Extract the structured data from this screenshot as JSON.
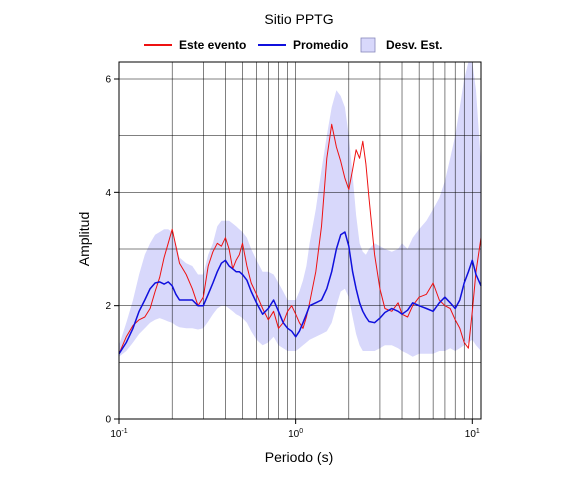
{
  "chart_data": {
    "type": "line",
    "title": "Sitio PPTG",
    "xlabel": "Periodo (s)",
    "ylabel": "Amplitud",
    "xscale": "log",
    "xlim": [
      0.1,
      11.2
    ],
    "ylim": [
      0,
      6.3
    ],
    "grid": true,
    "legend_position": "top",
    "x_tick_values": [
      0.1,
      1,
      10
    ],
    "x_ticks": [
      {
        "base": "10",
        "exp": "-1"
      },
      {
        "base": "10",
        "exp": "0"
      },
      {
        "base": "10",
        "exp": "1"
      }
    ],
    "y_ticks": [
      "0",
      "2",
      "4",
      "6"
    ],
    "legend": [
      "Este evento",
      "Promedio",
      "Desv. Est."
    ],
    "colors": {
      "event": "#ee1111",
      "mean": "#1010dd",
      "band": "#d8d8fb"
    },
    "x": [
      0.1,
      0.11,
      0.12,
      0.13,
      0.14,
      0.15,
      0.16,
      0.17,
      0.18,
      0.19,
      0.2,
      0.21,
      0.22,
      0.24,
      0.26,
      0.28,
      0.3,
      0.32,
      0.34,
      0.36,
      0.38,
      0.4,
      0.42,
      0.44,
      0.46,
      0.48,
      0.5,
      0.53,
      0.56,
      0.6,
      0.65,
      0.7,
      0.75,
      0.8,
      0.85,
      0.9,
      0.95,
      1.0,
      1.05,
      1.1,
      1.15,
      1.2,
      1.3,
      1.4,
      1.5,
      1.6,
      1.7,
      1.8,
      1.9,
      2.0,
      2.1,
      2.2,
      2.3,
      2.4,
      2.5,
      2.6,
      2.8,
      3.0,
      3.2,
      3.5,
      3.8,
      4.0,
      4.3,
      4.6,
      5.0,
      5.5,
      6.0,
      6.5,
      7.0,
      7.5,
      8.0,
      8.5,
      9.0,
      9.5,
      10.0,
      10.5,
      11.2
    ],
    "series": [
      {
        "name": "Este evento",
        "values": [
          1.15,
          1.45,
          1.65,
          1.75,
          1.8,
          1.95,
          2.25,
          2.5,
          2.85,
          3.1,
          3.35,
          3.05,
          2.75,
          2.55,
          2.3,
          2.0,
          2.15,
          2.7,
          2.95,
          3.1,
          3.05,
          3.2,
          3.0,
          2.65,
          2.8,
          2.9,
          3.1,
          2.7,
          2.4,
          2.2,
          1.95,
          1.75,
          1.9,
          1.6,
          1.7,
          1.9,
          2.0,
          1.85,
          1.7,
          1.6,
          1.8,
          2.05,
          2.6,
          3.4,
          4.6,
          5.2,
          4.8,
          4.55,
          4.25,
          4.05,
          4.4,
          4.75,
          4.6,
          4.9,
          4.5,
          3.9,
          2.9,
          2.3,
          1.95,
          1.9,
          2.05,
          1.85,
          1.8,
          2.0,
          2.15,
          2.2,
          2.4,
          2.1,
          2.0,
          1.95,
          1.75,
          1.6,
          1.35,
          1.25,
          1.9,
          2.6,
          3.2
        ]
      },
      {
        "name": "Promedio",
        "values": [
          1.15,
          1.35,
          1.6,
          1.9,
          2.1,
          2.3,
          2.4,
          2.42,
          2.38,
          2.42,
          2.35,
          2.2,
          2.1,
          2.1,
          2.1,
          2.0,
          2.0,
          2.2,
          2.4,
          2.6,
          2.75,
          2.8,
          2.7,
          2.65,
          2.6,
          2.6,
          2.55,
          2.45,
          2.25,
          2.05,
          1.85,
          1.95,
          2.1,
          1.9,
          1.7,
          1.6,
          1.55,
          1.45,
          1.55,
          1.7,
          1.85,
          2.0,
          2.05,
          2.1,
          2.3,
          2.6,
          3.0,
          3.25,
          3.3,
          3.05,
          2.6,
          2.3,
          2.05,
          1.9,
          1.8,
          1.72,
          1.7,
          1.78,
          1.88,
          1.95,
          1.9,
          1.85,
          1.92,
          2.05,
          2.0,
          1.95,
          1.9,
          2.05,
          2.15,
          2.05,
          1.95,
          2.1,
          2.4,
          2.6,
          2.8,
          2.55,
          2.35
        ]
      }
    ],
    "band": {
      "name": "Desv. Est.",
      "lower": [
        1.1,
        1.2,
        1.35,
        1.5,
        1.6,
        1.7,
        1.75,
        1.78,
        1.75,
        1.72,
        1.7,
        1.65,
        1.62,
        1.6,
        1.6,
        1.58,
        1.6,
        1.72,
        1.85,
        1.95,
        2.0,
        2.0,
        1.95,
        1.9,
        1.85,
        1.82,
        1.78,
        1.7,
        1.55,
        1.4,
        1.3,
        1.35,
        1.45,
        1.3,
        1.25,
        1.2,
        1.2,
        1.2,
        1.25,
        1.3,
        1.35,
        1.4,
        1.45,
        1.5,
        1.55,
        1.7,
        2.0,
        2.25,
        2.3,
        2.15,
        1.8,
        1.5,
        1.3,
        1.2,
        1.2,
        1.2,
        1.2,
        1.25,
        1.3,
        1.3,
        1.25,
        1.2,
        1.15,
        1.1,
        1.15,
        1.15,
        1.15,
        1.2,
        1.2,
        1.25,
        1.2,
        1.25,
        1.3,
        1.35,
        1.4,
        1.3,
        1.2
      ],
      "upper": [
        1.3,
        1.7,
        2.1,
        2.55,
        2.9,
        3.1,
        3.25,
        3.3,
        3.35,
        3.35,
        3.3,
        3.1,
        2.85,
        2.75,
        2.7,
        2.55,
        2.55,
        2.9,
        3.1,
        3.4,
        3.5,
        3.5,
        3.5,
        3.45,
        3.4,
        3.35,
        3.3,
        3.2,
        3.0,
        2.8,
        2.6,
        2.6,
        2.55,
        2.4,
        2.25,
        2.1,
        2.1,
        2.1,
        2.25,
        2.45,
        2.7,
        3.1,
        3.7,
        4.4,
        5.0,
        5.5,
        5.8,
        5.7,
        5.5,
        5.0,
        4.3,
        3.6,
        3.1,
        2.95,
        2.9,
        3.0,
        3.1,
        3.05,
        3.0,
        2.95,
        3.0,
        3.1,
        3.0,
        3.2,
        3.35,
        3.5,
        3.7,
        3.9,
        4.2,
        4.6,
        5.0,
        5.5,
        6.0,
        6.3,
        6.3,
        5.8,
        4.5
      ]
    }
  }
}
